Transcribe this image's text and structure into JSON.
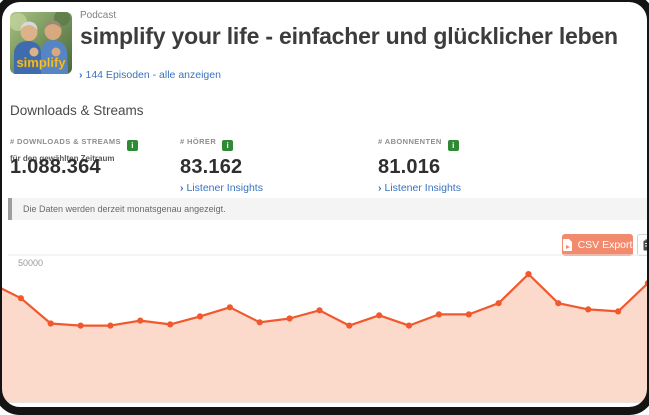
{
  "header": {
    "podcast_label": "Podcast",
    "title": "simplify your life - einfacher und glücklicher leben",
    "episodes_link": "144 Episoden - alle anzeigen",
    "chevron": "›",
    "cover_text": "simplify"
  },
  "section": {
    "title": "Downloads & Streams"
  },
  "info_badge_glyph": "i",
  "stats": [
    {
      "label": "# DOWNLOADS & STREAMS",
      "sublabel": "für den gewählten Zeitraum",
      "value": "1.088.364"
    },
    {
      "label": "# HÖRER",
      "value": "83.162",
      "link": "Listener Insights"
    },
    {
      "label": "# ABONNENTEN",
      "value": "81.016",
      "link": "Listener Insights"
    }
  ],
  "notice": {
    "text": "Die Daten werden derzeit monatsgenau angezeigt."
  },
  "toolbar": {
    "csv_export_label": "CSV Export"
  },
  "colors": {
    "accent_salmon": "#f28a6e",
    "chart_line": "#f0592e",
    "chart_fill": "#fbd9cb",
    "badge_green": "#2e8a34",
    "link_blue": "#3a72bd"
  },
  "chart_data": {
    "type": "area",
    "series_name": "Downloads & Streams",
    "x_labels": [],
    "x_axis_note": "monthly points, unlabeled",
    "values": [
      40400,
      35300,
      26700,
      26000,
      26000,
      27700,
      26400,
      29100,
      32200,
      27100,
      28400,
      31200,
      26000,
      29500,
      26000,
      29800,
      29800,
      33600,
      43500,
      33600,
      31500,
      30800,
      40400
    ],
    "y_tick_labels": [
      "50000"
    ],
    "y_gridline_value": 50000,
    "ylim": [
      0,
      52000
    ],
    "grid": "single horizontal line at 50000",
    "legend": "none",
    "line_color": "#f0592e",
    "fill_color": "#fbd9cb",
    "marker": "dot"
  }
}
